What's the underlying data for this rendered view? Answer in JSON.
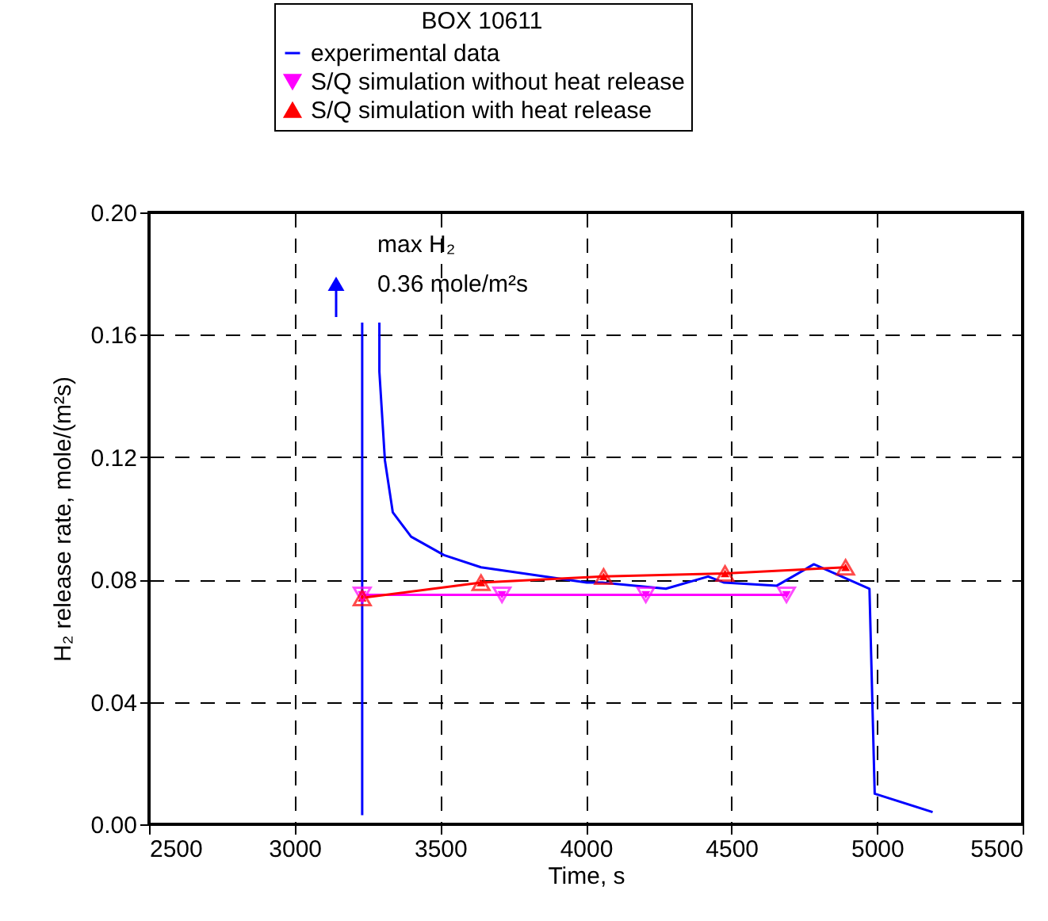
{
  "chart_data": {
    "type": "line",
    "legend_title": "BOX 10611",
    "xlabel": "Time, s",
    "ylabel": "H₂ release rate, mole/(m²s)",
    "xlim": [
      2500,
      5500
    ],
    "xticks": [
      2500,
      3000,
      3500,
      4000,
      4500,
      5000,
      5500
    ],
    "ylim": [
      0,
      0.2
    ],
    "yticks": [
      {
        "value": 0,
        "label": "0.00"
      },
      {
        "value": 0.04,
        "label": "0.04"
      },
      {
        "value": 0.08,
        "label": "0.08"
      },
      {
        "value": 0.12,
        "label": "0.12"
      },
      {
        "value": 0.16,
        "label": "0.16"
      },
      {
        "value": 0.2,
        "label": "0.20"
      }
    ],
    "grid": true,
    "legend": "top",
    "line_style": "solid",
    "annotations": [
      "max H₂",
      "0.36 mole/m²s"
    ],
    "series": [
      {
        "name": "experimental data",
        "color": "#0000ff",
        "marker": "none",
        "x": [
          3232,
          3232,
          3260,
          3291,
          3291,
          3310,
          3337,
          3400,
          3513,
          3640,
          4003,
          4057,
          4275,
          4420,
          4475,
          4656,
          4783,
          4974,
          4992,
          5191
        ],
        "values": [
          0.003,
          0.164,
          null,
          0.164,
          0.148,
          0.119,
          0.102,
          0.094,
          0.088,
          0.084,
          0.079,
          0.079,
          0.077,
          0.081,
          0.079,
          0.078,
          0.085,
          0.077,
          0.01,
          0.004
        ]
      },
      {
        "name": "S/Q simulation without heat release",
        "color": "#ff00ff",
        "marker": "triangle-down",
        "x": [
          3232,
          3712,
          4206,
          4689
        ],
        "values": [
          0.075,
          0.075,
          0.075,
          0.075
        ]
      },
      {
        "name": "S/Q simulation with heat release",
        "color": "#ff0000",
        "marker": "triangle",
        "x": [
          3232,
          3640,
          4061,
          4478,
          4892
        ],
        "values": [
          0.074,
          0.079,
          0.081,
          0.082,
          0.084
        ]
      }
    ]
  }
}
